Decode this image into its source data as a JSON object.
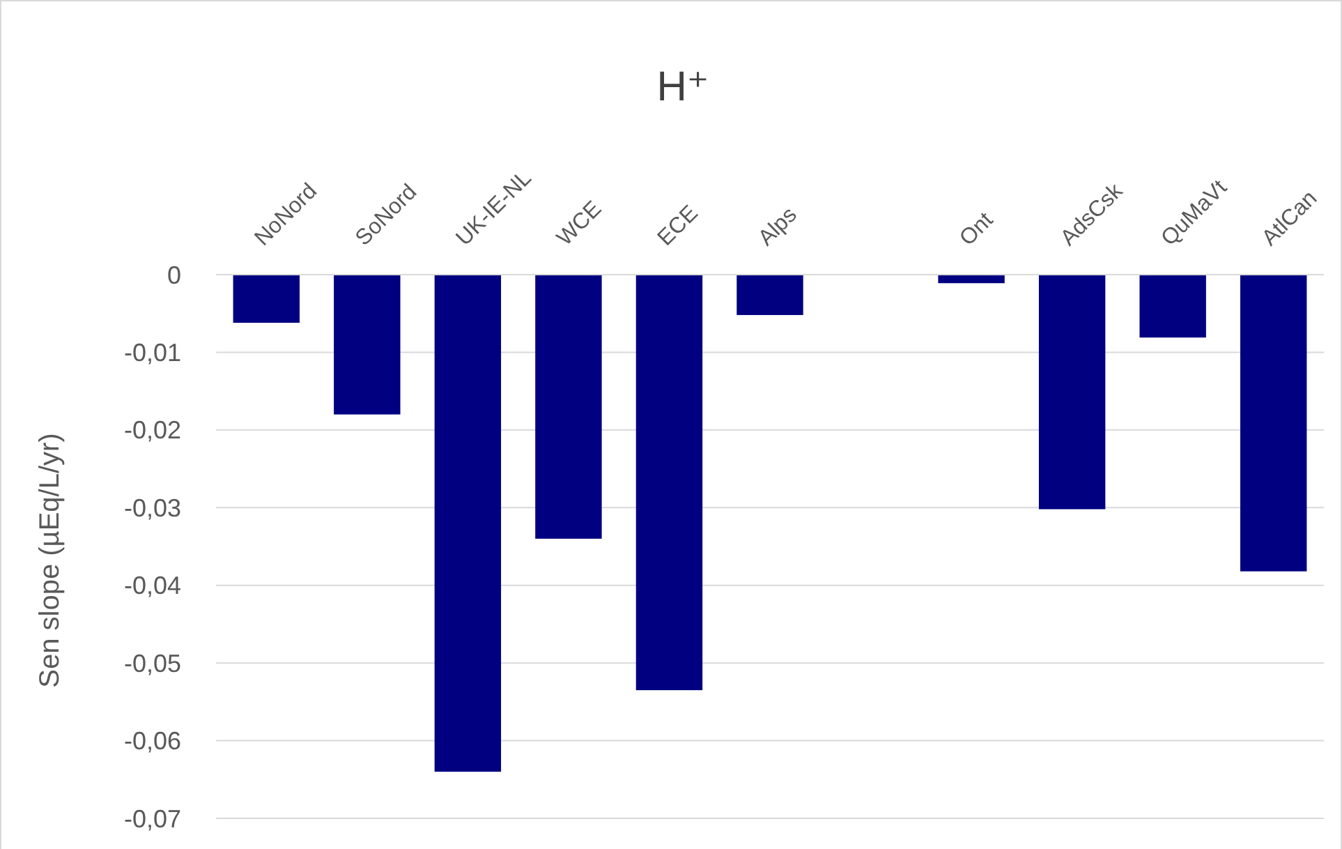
{
  "chart_data": {
    "type": "bar",
    "title": "H⁺",
    "ylabel": "Sen slope (µEq/L/yr)",
    "categories": [
      "NoNord",
      "SoNord",
      "UK-IE-NL",
      "WCE",
      "ECE",
      "Alps",
      null,
      "Ont",
      "AdsCsk",
      "QuMaVt",
      "AtlCan"
    ],
    "values": [
      -0.0062,
      -0.018,
      -0.064,
      -0.034,
      -0.0535,
      -0.0052,
      null,
      -0.0011,
      -0.0302,
      -0.0081,
      -0.0382
    ],
    "color": "#000080",
    "ylim": [
      -0.07,
      0
    ],
    "yticks": [
      0,
      {
        "value": -0.01,
        "label": "-0,01"
      },
      {
        "value": -0.02,
        "label": "-0,02"
      },
      {
        "value": -0.03,
        "label": "-0,03"
      },
      {
        "value": -0.04,
        "label": "-0,04"
      },
      {
        "value": -0.05,
        "label": "-0,05"
      },
      {
        "value": -0.06,
        "label": "-0,06"
      },
      {
        "value": -0.07,
        "label": "-0,07"
      }
    ],
    "grid": true
  }
}
